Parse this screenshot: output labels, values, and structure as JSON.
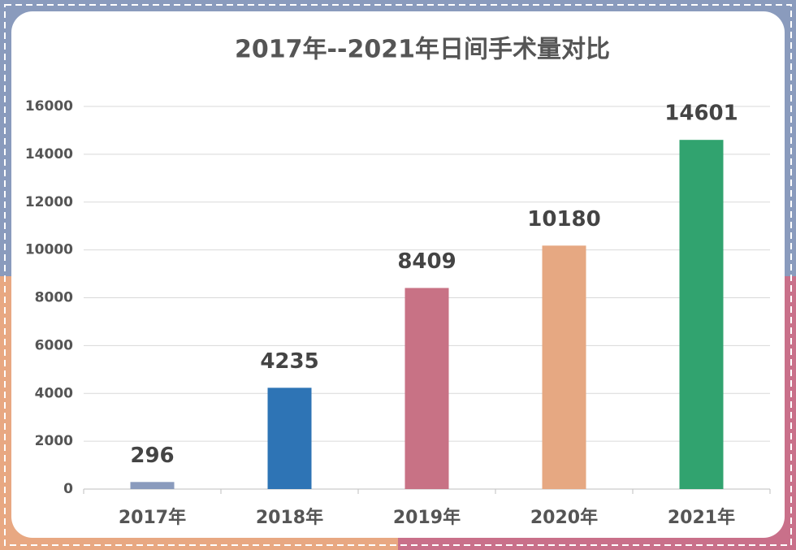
{
  "chart_data": {
    "type": "bar",
    "title": "2017年--2021年日间手术量对比",
    "categories": [
      "2017年",
      "2018年",
      "2019年",
      "2020年",
      "2021年"
    ],
    "values": [
      296,
      4235,
      8409,
      10180,
      14601
    ],
    "colors": [
      "#8a9bbd",
      "#2e74b5",
      "#c87285",
      "#e6a882",
      "#31a36f"
    ],
    "ylim": [
      0,
      16000
    ],
    "yticks": [
      0,
      2000,
      4000,
      6000,
      8000,
      10000,
      12000,
      14000,
      16000
    ],
    "grid": true
  }
}
